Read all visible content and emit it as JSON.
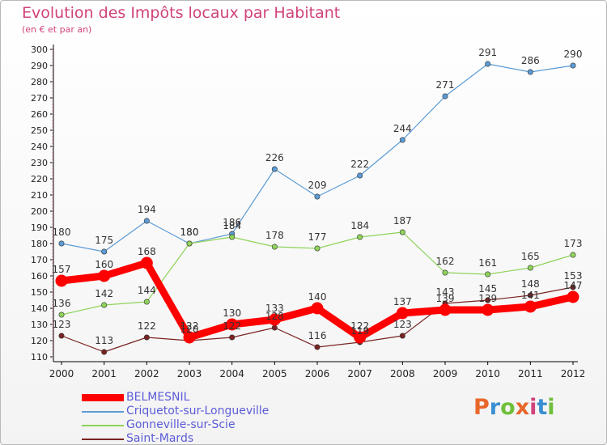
{
  "header": {
    "title": "Evolution des Impôts locaux par Habitant",
    "subtitle": "(en € et par an)"
  },
  "logo": {
    "text": "Proxiti",
    "colors": [
      "#e8672a",
      "#3b8fd1",
      "#6fbf3b",
      "#e8672a",
      "#d0427a",
      "#3b8fd1",
      "#6fbf3b"
    ]
  },
  "chart_data": {
    "type": "line",
    "x": [
      "2000",
      "2001",
      "2002",
      "2003",
      "2004",
      "2005",
      "2006",
      "2007",
      "2008",
      "2009",
      "2010",
      "2011",
      "2012"
    ],
    "ylim": [
      110,
      300
    ],
    "yticks": [
      110,
      120,
      130,
      140,
      150,
      160,
      170,
      180,
      190,
      200,
      210,
      220,
      230,
      240,
      250,
      260,
      270,
      280,
      290,
      300
    ],
    "grid": false,
    "legend_placement": "bottom-left",
    "series": [
      {
        "name": "Criquetot-sur-Longueville",
        "color": "#5b9bd5",
        "values": [
          180,
          175,
          194,
          180,
          186,
          226,
          209,
          222,
          244,
          271,
          291,
          286,
          290
        ]
      },
      {
        "name": "Gonneville-sur-Scie",
        "color": "#8fd35a",
        "values": [
          136,
          142,
          144,
          180,
          184,
          178,
          177,
          184,
          187,
          162,
          161,
          165,
          173
        ]
      },
      {
        "name": "Saint-Mards",
        "color": "#7a2323",
        "values": [
          123,
          113,
          122,
          120,
          122,
          128,
          116,
          119,
          123,
          143,
          145,
          148,
          153
        ]
      },
      {
        "name": "BELMESNIL",
        "color": "#ff0000",
        "values": [
          157,
          160,
          168,
          122,
          130,
          133,
          140,
          122,
          137,
          139,
          139,
          141,
          147
        ]
      }
    ],
    "data_labels": [
      {
        "series": "Criquetot-sur-Longueville",
        "labels": [
          "180",
          "175",
          "194",
          "180",
          "186",
          "226",
          "209",
          "222",
          "244",
          "271",
          "291",
          "286",
          "290"
        ]
      },
      {
        "series": "Gonneville-sur-Scie",
        "labels": [
          "136",
          "142",
          "144",
          "180",
          "184",
          "178",
          "177",
          "184",
          "187",
          "162",
          "161",
          "165",
          "173"
        ]
      },
      {
        "series": "Saint-Mards",
        "labels": [
          "123",
          "113",
          "122",
          "120",
          "122",
          "128",
          "116",
          "119",
          "123",
          "143",
          "145",
          "148",
          "153"
        ]
      },
      {
        "series": "BELMESNIL",
        "labels": [
          "157",
          "160",
          "168",
          "122",
          "130",
          "133",
          "140",
          "122",
          "137",
          "139",
          "139",
          "141",
          "147"
        ]
      }
    ]
  },
  "legend": {
    "items": [
      {
        "label": "BELMESNIL",
        "color": "#ff0000",
        "thickness": "thick"
      },
      {
        "label": "Criquetot-sur-Longueville",
        "color": "#5b9bd5",
        "thickness": "thin"
      },
      {
        "label": "Gonneville-sur-Scie",
        "color": "#8fd35a",
        "thickness": "thin"
      },
      {
        "label": "Saint-Mards",
        "color": "#7a2323",
        "thickness": "thin"
      }
    ]
  }
}
